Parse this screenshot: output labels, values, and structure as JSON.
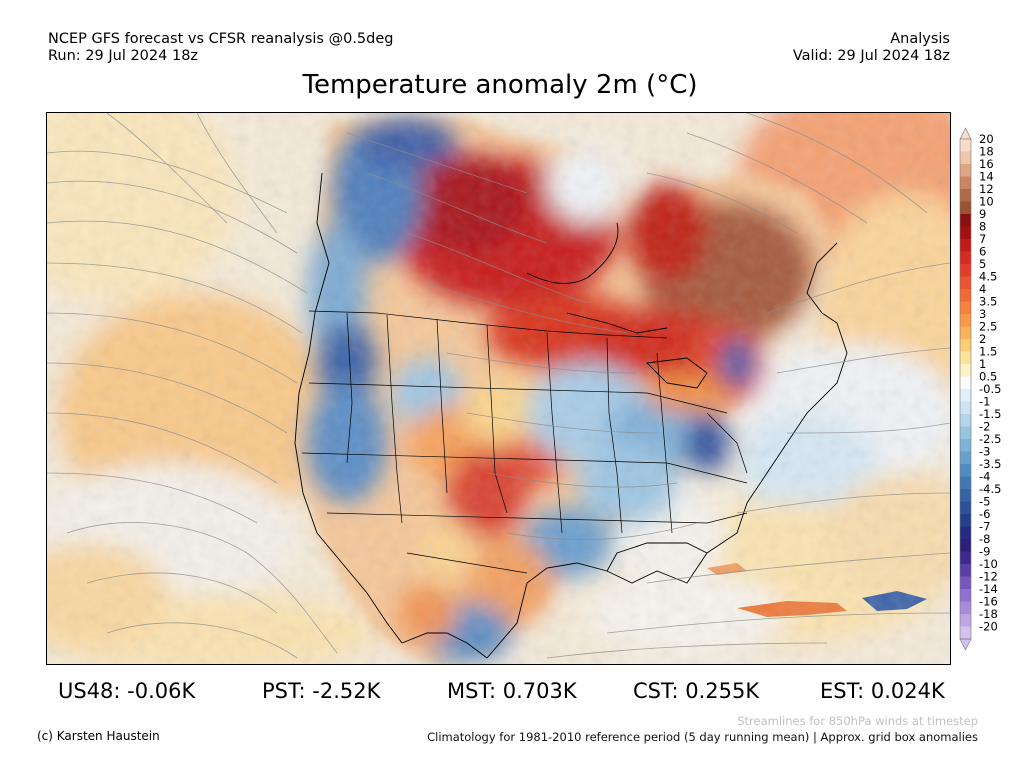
{
  "header": {
    "line1_left": "NCEP GFS forecast vs CFSR reanalysis @0.5deg",
    "line2_left": "Run: 29 Jul 2024 18z",
    "line1_right": "Analysis",
    "line2_right": "Valid: 29 Jul 2024 18z"
  },
  "title": "Temperature anomaly 2m (°C)",
  "map": {
    "region": "North America",
    "overlays": [
      "state-boundaries",
      "coastlines",
      "streamlines"
    ]
  },
  "colorbar": {
    "labels": [
      "20",
      "18",
      "16",
      "14",
      "12",
      "10",
      "9",
      "8",
      "7",
      "6",
      "5",
      "4.5",
      "4",
      "3.5",
      "3",
      "2.5",
      "2",
      "1.5",
      "1",
      "0.5",
      "-0.5",
      "-1",
      "-1.5",
      "-2",
      "-2.5",
      "-3",
      "-3.5",
      "-4",
      "-4.5",
      "-5",
      "-6",
      "-7",
      "-8",
      "-9",
      "-10",
      "-12",
      "-14",
      "-16",
      "-18",
      "-20"
    ],
    "colors": [
      "#f6dccb",
      "#efc5ad",
      "#e0a585",
      "#c98762",
      "#b06a48",
      "#9a5233",
      "#8a0f10",
      "#a41013",
      "#c01a1a",
      "#d42b22",
      "#e23d2a",
      "#ea5430",
      "#f06a37",
      "#f5823f",
      "#f8994a",
      "#fbb35b",
      "#fdcd73",
      "#fde39a",
      "#fdf2c4",
      "#fbfbfb",
      "#e3eff8",
      "#cde3f2",
      "#b3d4eb",
      "#98c4e2",
      "#7eb2d8",
      "#66a0cc",
      "#518cc0",
      "#4277b3",
      "#3763a5",
      "#2d5199",
      "#263f8c",
      "#232c80",
      "#2c207a",
      "#3d2a8d",
      "#5a3fa6",
      "#7558bd",
      "#8f72cf",
      "#a78cdc",
      "#bda6e6",
      "#d3c2ef"
    ]
  },
  "stats": [
    {
      "label": "US48: -0.06K"
    },
    {
      "label": "PST: -2.52K"
    },
    {
      "label": "MST: 0.703K"
    },
    {
      "label": "CST: 0.255K"
    },
    {
      "label": "EST: 0.024K"
    }
  ],
  "footer": {
    "credit": "(c) Karsten Haustein",
    "streamlines_note": "Streamlines for 850hPa winds at timestep",
    "climatology_note": "Climatology for 1981-2010 reference period (5 day running mean) | Approx. grid box anomalies"
  }
}
